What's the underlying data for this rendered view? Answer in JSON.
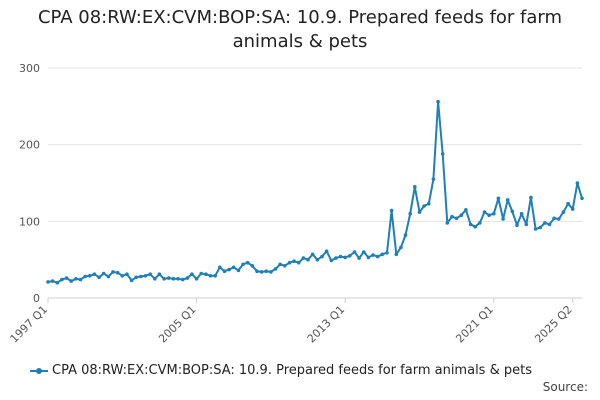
{
  "chart_data": {
    "type": "line",
    "title": "CPA 08:RW:EX:CVM:BOP:SA: 10.9. Prepared feeds for farm animals & pets",
    "xlabel": "",
    "ylabel": "",
    "ylim": [
      0,
      300
    ],
    "yticks": [
      0,
      100,
      200,
      300
    ],
    "xticks": [
      "1997 Q1",
      "2005 Q1",
      "2013 Q1",
      "2021 Q1",
      "2025 Q2"
    ],
    "grid": true,
    "legend": "bottom",
    "series": [
      {
        "name": "CPA 08:RW:EX:CVM:BOP:SA: 10.9. Prepared feeds for farm animals & pets",
        "color": "#1f7fb8",
        "x_start": "1997 Q1",
        "values": [
          21,
          22,
          20,
          24,
          26,
          22,
          25,
          24,
          28,
          29,
          31,
          27,
          32,
          28,
          34,
          33,
          29,
          31,
          23,
          27,
          28,
          29,
          31,
          25,
          31,
          25,
          26,
          25,
          25,
          24,
          26,
          31,
          25,
          32,
          31,
          29,
          29,
          40,
          35,
          37,
          40,
          36,
          44,
          46,
          42,
          35,
          34,
          35,
          34,
          38,
          44,
          42,
          46,
          48,
          46,
          52,
          50,
          57,
          50,
          54,
          61,
          49,
          52,
          54,
          53,
          55,
          60,
          52,
          60,
          53,
          56,
          54,
          57,
          59,
          114,
          57,
          66,
          82,
          110,
          145,
          112,
          120,
          123,
          155,
          256,
          188,
          98,
          106,
          104,
          108,
          115,
          96,
          93,
          98,
          112,
          108,
          110,
          130,
          103,
          128,
          113,
          95,
          110,
          96,
          131,
          90,
          92,
          98,
          96,
          104,
          103,
          112,
          123,
          116,
          150,
          130
        ]
      }
    ]
  },
  "legend_label": "CPA 08:RW:EX:CVM:BOP:SA: 10.9. Prepared feeds for farm animals & pets",
  "source_label": "Source:"
}
